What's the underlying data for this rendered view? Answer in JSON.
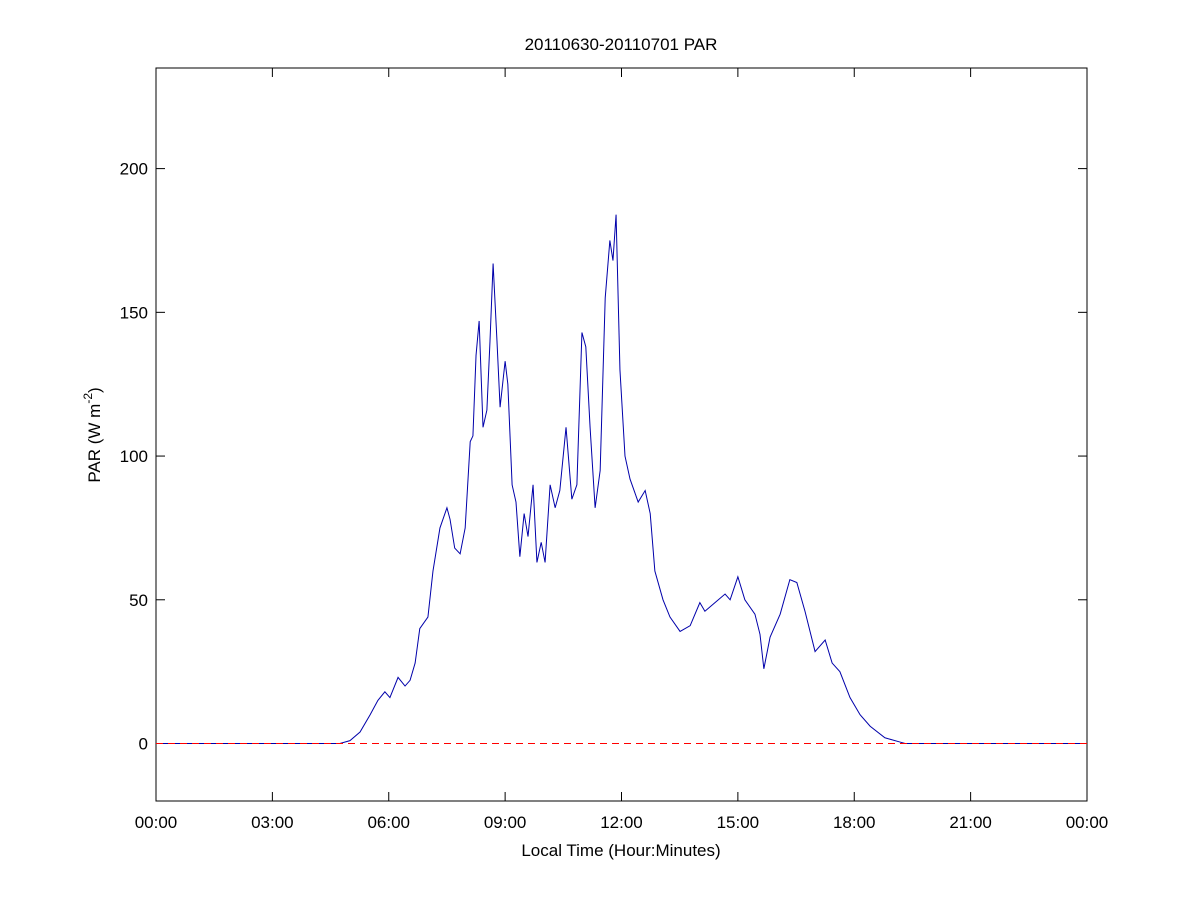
{
  "chart_data": {
    "type": "line",
    "title": "20110630-20110701 PAR",
    "x_label": "Local Time (Hour:Minutes)",
    "y_label": {
      "main": "PAR (W m",
      "sup": "-2",
      "end": ")"
    },
    "xlim": [
      0,
      24
    ],
    "ylim": [
      -20,
      235
    ],
    "xticks": [
      {
        "value": 0,
        "label": "00:00"
      },
      {
        "value": 3,
        "label": "03:00"
      },
      {
        "value": 6,
        "label": "06:00"
      },
      {
        "value": 9,
        "label": "09:00"
      },
      {
        "value": 12,
        "label": "12:00"
      },
      {
        "value": 15,
        "label": "15:00"
      },
      {
        "value": 18,
        "label": "18:00"
      },
      {
        "value": 21,
        "label": "21:00"
      },
      {
        "value": 24,
        "label": "00:00"
      }
    ],
    "yticks": [
      0,
      50,
      100,
      150,
      200
    ],
    "hline": {
      "y": 0,
      "color": "#ff0000",
      "style": "dashed"
    },
    "series": [
      {
        "color": "#0000aa",
        "x": [
          0,
          4.74,
          5.0,
          5.26,
          5.52,
          5.72,
          5.9,
          6.03,
          6.24,
          6.42,
          6.55,
          6.68,
          6.8,
          7.01,
          7.14,
          7.32,
          7.5,
          7.58,
          7.7,
          7.84,
          7.97,
          8.1,
          8.17,
          8.25,
          8.33,
          8.43,
          8.53,
          8.61,
          8.69,
          8.79,
          8.87,
          9.0,
          9.07,
          9.18,
          9.28,
          9.38,
          9.49,
          9.59,
          9.72,
          9.82,
          9.93,
          10.03,
          10.16,
          10.29,
          10.41,
          10.57,
          10.72,
          10.85,
          10.98,
          11.08,
          11.19,
          11.32,
          11.45,
          11.58,
          11.7,
          11.78,
          11.86,
          11.96,
          12.09,
          12.22,
          12.43,
          12.61,
          12.74,
          12.86,
          13.07,
          13.25,
          13.51,
          13.77,
          14.02,
          14.15,
          14.41,
          14.67,
          14.8,
          15.0,
          15.18,
          15.44,
          15.57,
          15.67,
          15.83,
          16.09,
          16.34,
          16.52,
          16.73,
          16.99,
          17.25,
          17.43,
          17.63,
          17.89,
          18.15,
          18.41,
          18.79,
          19.18,
          19.31,
          24
        ],
        "values": [
          0,
          0,
          1,
          4,
          10,
          15,
          18,
          16,
          23,
          20,
          22,
          28,
          40,
          44,
          60,
          75,
          82,
          78,
          68,
          66,
          75,
          105,
          107,
          135,
          147,
          110,
          116,
          140,
          167,
          140,
          117,
          133,
          125,
          90,
          84,
          65,
          80,
          72,
          90,
          63,
          70,
          63,
          90,
          82,
          88,
          110,
          85,
          90,
          143,
          138,
          110,
          82,
          95,
          155,
          175,
          168,
          184,
          130,
          100,
          92,
          84,
          88,
          80,
          60,
          50,
          44,
          39,
          41,
          49,
          46,
          49,
          52,
          50,
          58,
          50,
          45,
          38,
          26,
          37,
          45,
          57,
          56,
          46,
          32,
          36,
          28,
          25,
          16,
          10,
          6,
          2,
          0.5,
          0,
          0
        ]
      }
    ]
  }
}
